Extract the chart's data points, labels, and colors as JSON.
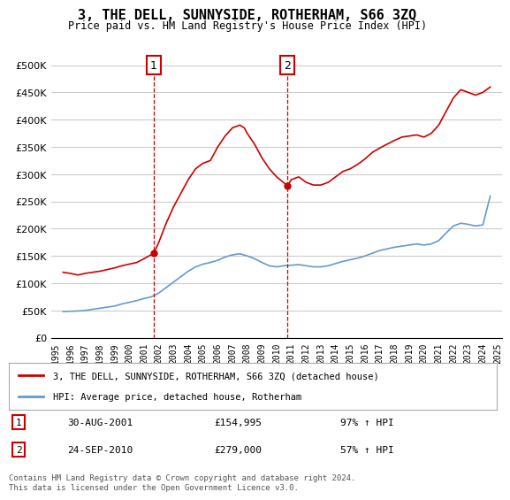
{
  "title": "3, THE DELL, SUNNYSIDE, ROTHERHAM, S66 3ZQ",
  "subtitle": "Price paid vs. HM Land Registry's House Price Index (HPI)",
  "ylabel_ticks": [
    "£0",
    "£50K",
    "£100K",
    "£150K",
    "£200K",
    "£250K",
    "£300K",
    "£350K",
    "£400K",
    "£450K",
    "£500K"
  ],
  "yticks_values": [
    0,
    50000,
    100000,
    150000,
    200000,
    250000,
    300000,
    350000,
    400000,
    450000,
    500000
  ],
  "ylim": [
    0,
    500000
  ],
  "x_start_year": 1995,
  "x_end_year": 2025,
  "transaction1": {
    "date": 2001.66,
    "price": 154995,
    "label": "1"
  },
  "transaction2": {
    "date": 2010.73,
    "price": 279000,
    "label": "2"
  },
  "red_line_color": "#cc0000",
  "blue_line_color": "#6699cc",
  "vline_color": "#cc0000",
  "vline_style": "--",
  "annotation_box_color": "#cc0000",
  "legend_label_red": "3, THE DELL, SUNNYSIDE, ROTHERHAM, S66 3ZQ (detached house)",
  "legend_label_blue": "HPI: Average price, detached house, Rotherham",
  "table_rows": [
    {
      "num": "1",
      "date": "30-AUG-2001",
      "price": "£154,995",
      "hpi": "97% ↑ HPI"
    },
    {
      "num": "2",
      "date": "24-SEP-2010",
      "price": "£279,000",
      "hpi": "57% ↑ HPI"
    }
  ],
  "footnote": "Contains HM Land Registry data © Crown copyright and database right 2024.\nThis data is licensed under the Open Government Licence v3.0.",
  "background_color": "#ffffff",
  "grid_color": "#cccccc",
  "hpi_red_data": {
    "years": [
      1995.5,
      1996.0,
      1996.5,
      1997.0,
      1997.5,
      1998.0,
      1998.5,
      1999.0,
      1999.5,
      2000.0,
      2000.5,
      2001.0,
      2001.66,
      2002.0,
      2002.5,
      2003.0,
      2003.5,
      2004.0,
      2004.5,
      2005.0,
      2005.5,
      2006.0,
      2006.5,
      2007.0,
      2007.5,
      2007.8,
      2008.0,
      2008.5,
      2009.0,
      2009.5,
      2010.0,
      2010.73,
      2011.0,
      2011.5,
      2012.0,
      2012.5,
      2013.0,
      2013.5,
      2014.0,
      2014.5,
      2015.0,
      2015.5,
      2016.0,
      2016.5,
      2017.0,
      2017.5,
      2018.0,
      2018.5,
      2019.0,
      2019.5,
      2020.0,
      2020.5,
      2021.0,
      2021.5,
      2022.0,
      2022.5,
      2023.0,
      2023.5,
      2024.0,
      2024.5
    ],
    "prices": [
      120000,
      118000,
      115000,
      118000,
      120000,
      122000,
      125000,
      128000,
      132000,
      135000,
      138000,
      145000,
      154995,
      175000,
      210000,
      240000,
      265000,
      290000,
      310000,
      320000,
      325000,
      350000,
      370000,
      385000,
      390000,
      385000,
      375000,
      355000,
      330000,
      310000,
      295000,
      279000,
      290000,
      295000,
      285000,
      280000,
      280000,
      285000,
      295000,
      305000,
      310000,
      318000,
      328000,
      340000,
      348000,
      355000,
      362000,
      368000,
      370000,
      372000,
      368000,
      375000,
      390000,
      415000,
      440000,
      455000,
      450000,
      445000,
      450000,
      460000
    ]
  },
  "hpi_blue_data": {
    "years": [
      1995.5,
      1996.0,
      1996.5,
      1997.0,
      1997.5,
      1998.0,
      1998.5,
      1999.0,
      1999.5,
      2000.0,
      2000.5,
      2001.0,
      2001.5,
      2002.0,
      2002.5,
      2003.0,
      2003.5,
      2004.0,
      2004.5,
      2005.0,
      2005.5,
      2006.0,
      2006.5,
      2007.0,
      2007.5,
      2008.0,
      2008.5,
      2009.0,
      2009.5,
      2010.0,
      2010.5,
      2011.0,
      2011.5,
      2012.0,
      2012.5,
      2013.0,
      2013.5,
      2014.0,
      2014.5,
      2015.0,
      2015.5,
      2016.0,
      2016.5,
      2017.0,
      2017.5,
      2018.0,
      2018.5,
      2019.0,
      2019.5,
      2020.0,
      2020.5,
      2021.0,
      2021.5,
      2022.0,
      2022.5,
      2023.0,
      2023.5,
      2024.0,
      2024.5
    ],
    "prices": [
      48000,
      48500,
      49000,
      50000,
      52000,
      54000,
      56000,
      58000,
      62000,
      65000,
      68000,
      72000,
      75000,
      82000,
      92000,
      102000,
      112000,
      122000,
      130000,
      135000,
      138000,
      142000,
      148000,
      152000,
      154000,
      150000,
      145000,
      138000,
      132000,
      130000,
      132000,
      133000,
      134000,
      132000,
      130000,
      130000,
      132000,
      136000,
      140000,
      143000,
      146000,
      150000,
      155000,
      160000,
      163000,
      166000,
      168000,
      170000,
      172000,
      170000,
      172000,
      178000,
      192000,
      205000,
      210000,
      208000,
      205000,
      207000,
      260000
    ]
  }
}
